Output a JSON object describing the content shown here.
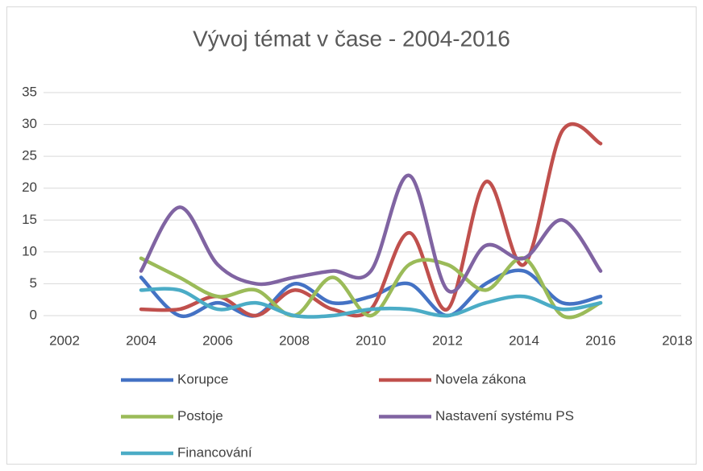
{
  "chart_data": {
    "type": "line",
    "title": "Vývoj témat v čase - 2004-2016",
    "x": [
      2004,
      2005,
      2006,
      2007,
      2008,
      2009,
      2010,
      2011,
      2012,
      2013,
      2014,
      2015,
      2016
    ],
    "series": [
      {
        "name": "Korupce",
        "color": "#4472c4",
        "values": [
          6,
          0,
          2,
          0,
          5,
          2,
          3,
          5,
          0,
          5,
          7,
          2,
          3
        ]
      },
      {
        "name": "Novela zákona",
        "color": "#c0504d",
        "values": [
          1,
          1,
          3,
          0,
          4,
          1,
          1,
          13,
          1,
          21,
          8,
          29,
          27
        ]
      },
      {
        "name": "Postoje",
        "color": "#9bbb59",
        "values": [
          9,
          6,
          3,
          4,
          0,
          6,
          0,
          8,
          8,
          4,
          9,
          0,
          2
        ]
      },
      {
        "name": "Nastavení systému PS",
        "color": "#8064a2",
        "values": [
          7,
          17,
          8,
          5,
          6,
          7,
          7,
          22,
          4,
          11,
          9,
          15,
          7
        ]
      },
      {
        "name": "Financování",
        "color": "#4bacc6",
        "values": [
          4,
          4,
          1,
          2,
          0,
          0,
          1,
          1,
          0,
          2,
          3,
          1,
          2
        ]
      }
    ],
    "xlim": [
      2002,
      2018
    ],
    "xticks": [
      2002,
      2004,
      2006,
      2008,
      2010,
      2012,
      2014,
      2016,
      2018
    ],
    "ylim": [
      0,
      35
    ],
    "yticks": [
      0,
      5,
      10,
      15,
      20,
      25,
      30,
      35
    ],
    "grid": true,
    "smooth": true,
    "legend": "bottom"
  }
}
